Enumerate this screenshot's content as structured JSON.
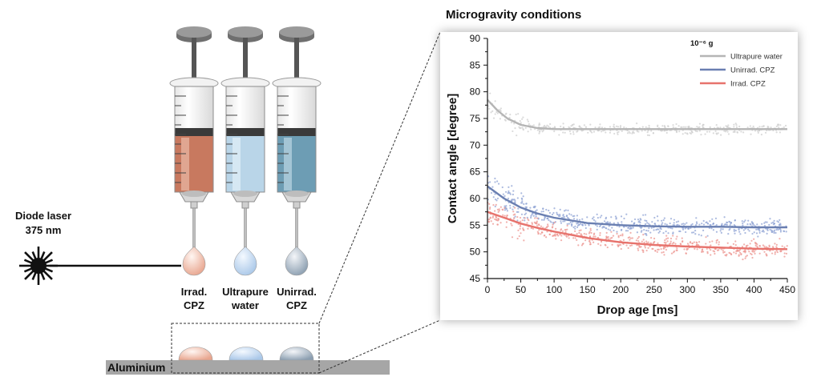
{
  "laser": {
    "line1": "Diode laser",
    "line2": "375 nm"
  },
  "syringes": [
    {
      "line1": "Irrad.",
      "line2": "CPZ",
      "fill": "#c8795f",
      "fill_light": "#e9b9a6",
      "drop": "#e8a58e"
    },
    {
      "line1": "Ultrapure",
      "line2": "water",
      "fill": "#b9d5e8",
      "fill_light": "#e3eff8",
      "drop": "#b9d3ee"
    },
    {
      "line1": "Unirrad.",
      "line2": "CPZ",
      "fill": "#6d9db4",
      "fill_light": "#bcd6e3",
      "drop": "#98acbd"
    }
  ],
  "substrate": {
    "label": "Aluminium",
    "color": "#a6a6a6"
  },
  "chart_data": {
    "type": "scatter",
    "title": "Microgravity conditions",
    "xlabel": "Drop age [ms]",
    "ylabel": "Contact angle [degree]",
    "xlim": [
      0,
      450
    ],
    "ylim": [
      45,
      90
    ],
    "xticks": [
      0,
      50,
      100,
      150,
      200,
      250,
      300,
      350,
      400,
      450
    ],
    "yticks": [
      45,
      50,
      55,
      60,
      65,
      70,
      75,
      80,
      85,
      90
    ],
    "legend_title": "10⁻⁶ g",
    "legend_position": "top-right",
    "grid": false,
    "series": [
      {
        "name": "Ultrapure water",
        "color": "#b5b5b5",
        "point_color": "#cfcfcf",
        "x": [
          0,
          15,
          30,
          50,
          75,
          100,
          150,
          200,
          250,
          300,
          350,
          400,
          450
        ],
        "fit": [
          78.5,
          76.5,
          75.0,
          73.8,
          73.2,
          73.0,
          73.0,
          73.0,
          73.0,
          73.0,
          73.0,
          73.0,
          73.0
        ]
      },
      {
        "name": "Unirrad. CPZ",
        "color": "#6a7fb1",
        "point_color": "#8fa3d4",
        "x": [
          0,
          25,
          50,
          75,
          100,
          150,
          200,
          250,
          300,
          350,
          400,
          450
        ],
        "fit": [
          62.3,
          60.0,
          58.3,
          57.2,
          56.4,
          55.4,
          55.0,
          54.8,
          54.7,
          54.7,
          54.6,
          54.6
        ]
      },
      {
        "name": "Irrad. CPZ",
        "color": "#e7736d",
        "point_color": "#ec9690",
        "x": [
          0,
          25,
          50,
          75,
          100,
          150,
          200,
          250,
          300,
          350,
          400,
          450
        ],
        "fit": [
          57.5,
          56.4,
          55.3,
          54.5,
          53.8,
          52.6,
          51.8,
          51.3,
          51.0,
          50.8,
          50.6,
          50.5
        ]
      }
    ]
  }
}
